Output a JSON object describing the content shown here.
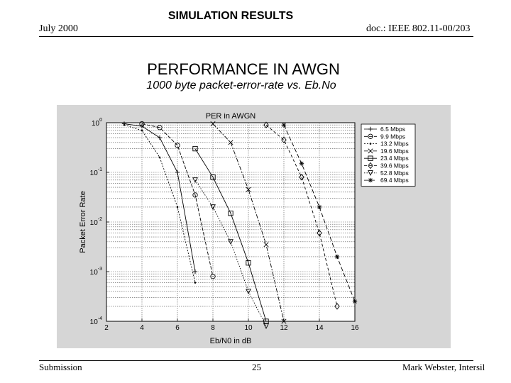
{
  "header": {
    "date": "July 2000",
    "section_title": "SIMULATION RESULTS",
    "doc_id": "doc.: IEEE 802.11-00/203"
  },
  "slide": {
    "title": "PERFORMANCE IN AWGN",
    "subtitle": "1000 byte packet-error-rate vs. Eb.No"
  },
  "footer": {
    "left": "Submission",
    "page": "25",
    "author": "Mark Webster, Intersil"
  },
  "chart_data": {
    "type": "line",
    "title": "PER in AWGN",
    "xlabel": "Eb/N0 in dB",
    "ylabel": "Packet Error Rate",
    "xlim": [
      2,
      16
    ],
    "ylim": [
      0.0001,
      1
    ],
    "y_scale": "log",
    "x_ticks": [
      "2",
      "4",
      "6",
      "8",
      "10",
      "12",
      "14",
      "16"
    ],
    "y_ticks": [
      {
        "base": "10",
        "exp": "0",
        "value": 1
      },
      {
        "base": "10",
        "exp": "-1",
        "value": 0.1
      },
      {
        "base": "10",
        "exp": "-2",
        "value": 0.01
      },
      {
        "base": "10",
        "exp": "-3",
        "value": 0.001
      },
      {
        "base": "10",
        "exp": "-4",
        "value": 0.0001
      }
    ],
    "grid": true,
    "legend_position": "top-right",
    "series": [
      {
        "name": "6.5 Mbps",
        "marker": "plus",
        "x": [
          3,
          4,
          5,
          6,
          7
        ],
        "y": [
          0.95,
          0.85,
          0.5,
          0.1,
          0.001
        ]
      },
      {
        "name": "9.9 Mbps",
        "marker": "circle",
        "x": [
          4,
          5,
          6,
          7,
          8
        ],
        "y": [
          0.95,
          0.8,
          0.35,
          0.035,
          0.0008
        ]
      },
      {
        "name": "13.2 Mbps",
        "marker": "dot",
        "x": [
          3,
          4,
          5,
          6,
          7
        ],
        "y": [
          0.9,
          0.7,
          0.2,
          0.02,
          0.0006
        ]
      },
      {
        "name": "19.6 Mbps",
        "marker": "cross",
        "x": [
          8,
          9,
          10,
          11,
          12
        ],
        "y": [
          0.95,
          0.4,
          0.045,
          0.0035,
          0.0001
        ]
      },
      {
        "name": "23.4 Mbps",
        "marker": "square",
        "x": [
          7,
          8,
          9,
          10,
          11
        ],
        "y": [
          0.3,
          0.08,
          0.015,
          0.0015,
          0.0001
        ]
      },
      {
        "name": "39.6 Mbps",
        "marker": "diamond",
        "x": [
          11,
          12,
          13,
          14,
          15
        ],
        "y": [
          0.9,
          0.45,
          0.08,
          0.006,
          0.0002
        ]
      },
      {
        "name": "52.8 Mbps",
        "marker": "triangle",
        "x": [
          7,
          8,
          9,
          10,
          11
        ],
        "y": [
          0.07,
          0.02,
          0.004,
          0.0004,
          8e-05
        ]
      },
      {
        "name": "69.4 Mbps",
        "marker": "star",
        "x": [
          12,
          13,
          14,
          15,
          16
        ],
        "y": [
          0.9,
          0.15,
          0.02,
          0.002,
          0.00025
        ]
      }
    ]
  }
}
